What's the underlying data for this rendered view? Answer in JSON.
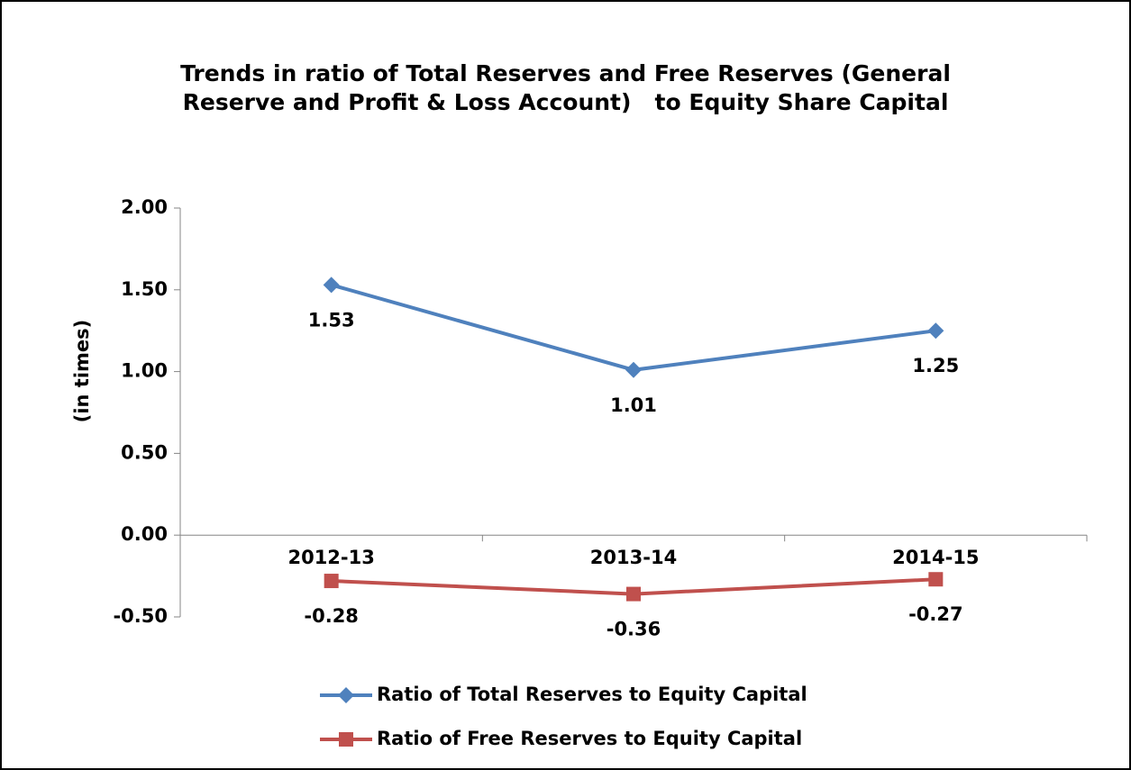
{
  "chart_data": {
    "type": "line",
    "title": "Trends in ratio of Total Reserves and Free Reserves (General Reserve and Profit & Loss Account)   to Equity Share Capital",
    "y_axis_label": "(in times)",
    "categories": [
      "2012-13",
      "2013-14",
      "2014-15"
    ],
    "series": [
      {
        "name": "Ratio of Total Reserves to Equity Capital",
        "color": "#4f81bd",
        "marker": "diamond",
        "values": [
          1.53,
          1.01,
          1.25
        ]
      },
      {
        "name": "Ratio of Free Reserves to Equity Capital",
        "color": "#c0504d",
        "marker": "square",
        "values": [
          -0.28,
          -0.36,
          -0.27
        ]
      }
    ],
    "ylim": [
      -0.5,
      2
    ],
    "yticks": [
      {
        "value": -0.5,
        "label": "-0.50"
      },
      {
        "value": 0,
        "label": "0.00"
      },
      {
        "value": 0.5,
        "label": "0.50"
      },
      {
        "value": 1,
        "label": "1.00"
      },
      {
        "value": 1.5,
        "label": "1.50"
      },
      {
        "value": 2,
        "label": "2.00"
      }
    ],
    "grid": false,
    "legend": "bottom"
  }
}
